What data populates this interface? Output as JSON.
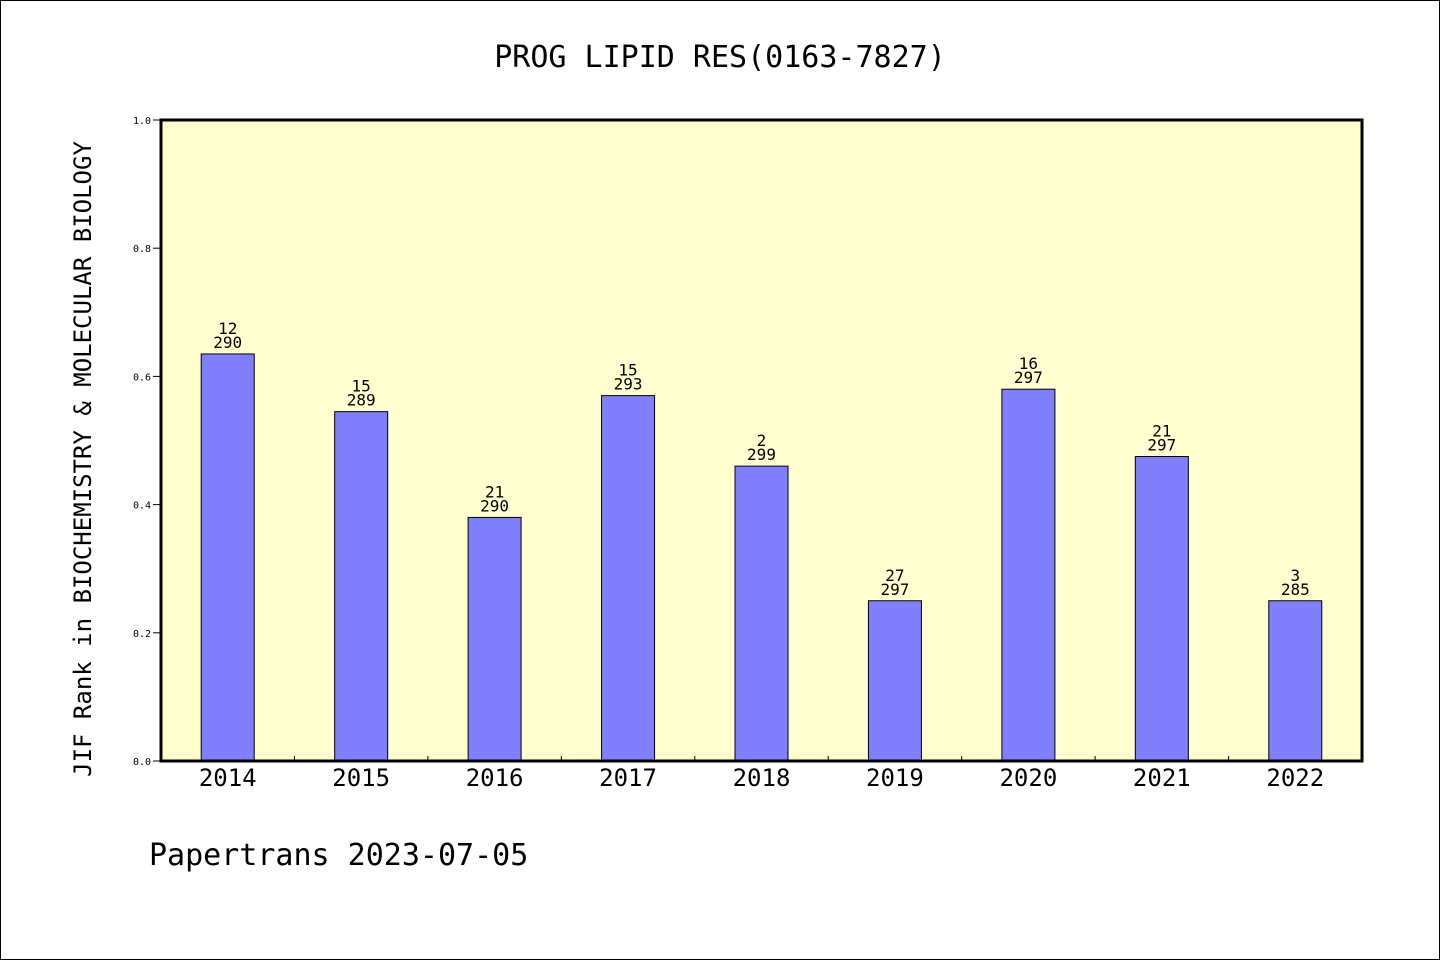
{
  "chart_data": {
    "type": "bar",
    "title": "PROG LIPID RES(0163-7827)",
    "xlabel": "",
    "ylabel": "JIF Rank in BIOCHEMISTRY & MOLECULAR BIOLOGY",
    "ylim": [
      0,
      1.0
    ],
    "yticks": [
      "0.0",
      "0.2",
      "0.4",
      "0.6",
      "0.8",
      "1.0"
    ],
    "categories": [
      "2014",
      "2015",
      "2016",
      "2017",
      "2018",
      "2019",
      "2020",
      "2021",
      "2022"
    ],
    "values": [
      0.635,
      0.545,
      0.38,
      0.57,
      0.46,
      0.25,
      0.58,
      0.475,
      0.25
    ],
    "bar_labels": [
      {
        "rank": "12",
        "total": "290"
      },
      {
        "rank": "15",
        "total": "289"
      },
      {
        "rank": "21",
        "total": "290"
      },
      {
        "rank": "15",
        "total": "293"
      },
      {
        "rank": "2",
        "total": "299"
      },
      {
        "rank": "27",
        "total": "297"
      },
      {
        "rank": "16",
        "total": "297"
      },
      {
        "rank": "21",
        "total": "297"
      },
      {
        "rank": "3",
        "total": "285"
      }
    ],
    "bar_color": "#8080ff",
    "plot_background": "#ffffd0",
    "grid": false,
    "legend": "none"
  },
  "footer": "Papertrans 2023-07-05"
}
